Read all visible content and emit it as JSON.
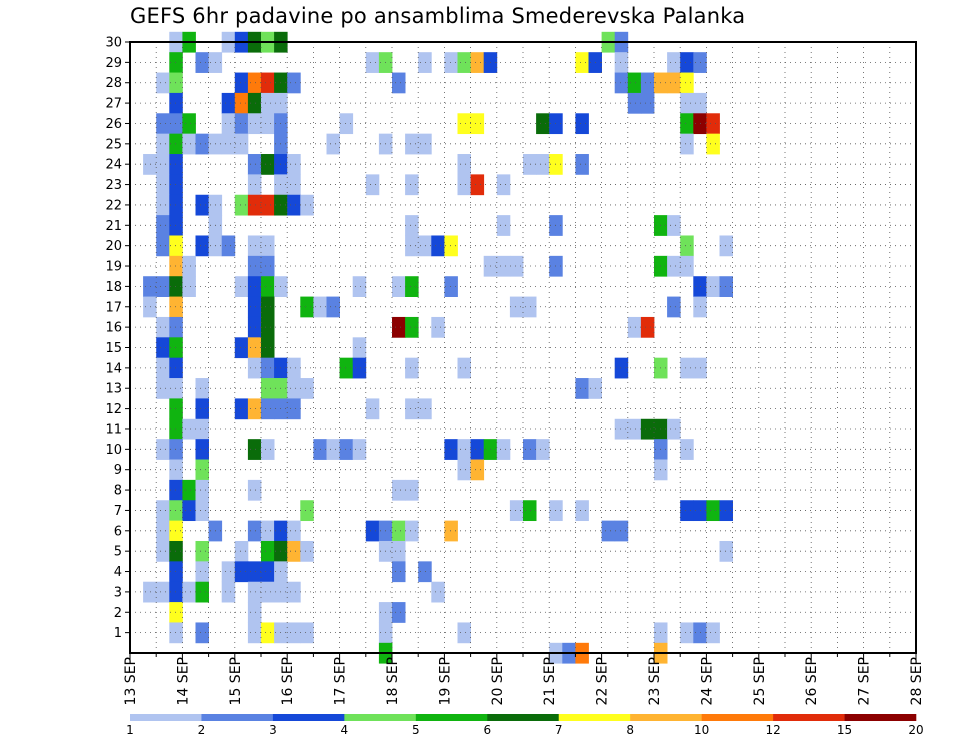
{
  "chart_data": {
    "type": "heatmap",
    "title": "GEFS 6hr padavine po ansamblima Smederevska Palanka",
    "y_axis": {
      "range": [
        0,
        30
      ],
      "ticks": [
        1,
        2,
        3,
        4,
        5,
        6,
        7,
        8,
        9,
        10,
        11,
        12,
        13,
        14,
        15,
        16,
        17,
        18,
        19,
        20,
        21,
        22,
        23,
        24,
        25,
        26,
        27,
        28,
        29,
        30
      ]
    },
    "x_axis": {
      "steps_per_day": 4,
      "date_labels": [
        "13 SEP",
        "14 SEP",
        "15 SEP",
        "16 SEP",
        "17 SEP",
        "18 SEP",
        "19 SEP",
        "20 SEP",
        "21 SEP",
        "22 SEP",
        "23 SEP",
        "24 SEP",
        "25 SEP",
        "26 SEP",
        "27 SEP",
        "28 SEP"
      ]
    },
    "grid": true,
    "colorbar": {
      "boundaries": [
        "1",
        "2",
        "3",
        "4",
        "5",
        "6",
        "7",
        "8",
        "10",
        "12",
        "15",
        "20"
      ],
      "colors": [
        "#b0c4f0",
        "#5a82e2",
        "#1548d8",
        "#6fe25a",
        "#10b410",
        "#0a6c0a",
        "#ffff1e",
        "#ffb432",
        "#ff7a0a",
        "#e12c0a",
        "#8c0000"
      ]
    },
    "cells": [
      [
        30,
        3,
        1
      ],
      [
        30,
        4,
        5
      ],
      [
        30,
        7,
        1
      ],
      [
        30,
        8,
        3
      ],
      [
        30,
        9,
        6
      ],
      [
        30,
        10,
        4
      ],
      [
        30,
        11,
        6
      ],
      [
        30,
        36,
        4
      ],
      [
        30,
        37,
        2
      ],
      [
        29,
        3,
        5
      ],
      [
        29,
        5,
        2
      ],
      [
        29,
        6,
        1
      ],
      [
        29,
        18,
        1
      ],
      [
        29,
        19,
        4
      ],
      [
        29,
        22,
        1
      ],
      [
        29,
        24,
        1
      ],
      [
        29,
        25,
        4
      ],
      [
        29,
        26,
        8
      ],
      [
        29,
        27,
        3
      ],
      [
        29,
        34,
        7
      ],
      [
        29,
        35,
        3
      ],
      [
        29,
        37,
        1
      ],
      [
        29,
        41,
        1
      ],
      [
        29,
        42,
        3
      ],
      [
        29,
        43,
        2
      ],
      [
        28,
        2,
        1
      ],
      [
        28,
        3,
        4
      ],
      [
        28,
        8,
        3
      ],
      [
        28,
        9,
        9
      ],
      [
        28,
        10,
        10
      ],
      [
        28,
        11,
        6
      ],
      [
        28,
        12,
        2
      ],
      [
        28,
        20,
        2
      ],
      [
        28,
        37,
        2
      ],
      [
        28,
        38,
        5
      ],
      [
        28,
        39,
        2
      ],
      [
        28,
        40,
        8
      ],
      [
        28,
        41,
        8
      ],
      [
        28,
        42,
        7
      ],
      [
        27,
        3,
        3
      ],
      [
        27,
        7,
        3
      ],
      [
        27,
        8,
        9
      ],
      [
        27,
        9,
        6
      ],
      [
        27,
        10,
        1
      ],
      [
        27,
        11,
        1
      ],
      [
        27,
        38,
        2
      ],
      [
        27,
        39,
        2
      ],
      [
        27,
        42,
        1
      ],
      [
        27,
        43,
        1
      ],
      [
        26,
        2,
        2
      ],
      [
        26,
        3,
        2
      ],
      [
        26,
        4,
        5
      ],
      [
        26,
        7,
        1
      ],
      [
        26,
        8,
        2
      ],
      [
        26,
        9,
        1
      ],
      [
        26,
        10,
        1
      ],
      [
        26,
        11,
        2
      ],
      [
        26,
        16,
        1
      ],
      [
        26,
        25,
        7
      ],
      [
        26,
        26,
        7
      ],
      [
        26,
        31,
        6
      ],
      [
        26,
        32,
        3
      ],
      [
        26,
        34,
        3
      ],
      [
        26,
        42,
        5
      ],
      [
        26,
        43,
        11
      ],
      [
        26,
        44,
        10
      ],
      [
        25,
        2,
        1
      ],
      [
        25,
        3,
        5
      ],
      [
        25,
        4,
        1
      ],
      [
        25,
        5,
        2
      ],
      [
        25,
        6,
        1
      ],
      [
        25,
        7,
        1
      ],
      [
        25,
        8,
        1
      ],
      [
        25,
        11,
        2
      ],
      [
        25,
        15,
        1
      ],
      [
        25,
        19,
        1
      ],
      [
        25,
        21,
        1
      ],
      [
        25,
        22,
        1
      ],
      [
        25,
        42,
        1
      ],
      [
        25,
        44,
        7
      ],
      [
        24,
        1,
        1
      ],
      [
        24,
        2,
        1
      ],
      [
        24,
        3,
        3
      ],
      [
        24,
        9,
        2
      ],
      [
        24,
        10,
        6
      ],
      [
        24,
        11,
        3
      ],
      [
        24,
        12,
        1
      ],
      [
        24,
        25,
        1
      ],
      [
        24,
        30,
        1
      ],
      [
        24,
        31,
        1
      ],
      [
        24,
        32,
        7
      ],
      [
        24,
        34,
        2
      ],
      [
        23,
        2,
        1
      ],
      [
        23,
        3,
        3
      ],
      [
        23,
        9,
        1
      ],
      [
        23,
        11,
        1
      ],
      [
        23,
        12,
        1
      ],
      [
        23,
        18,
        1
      ],
      [
        23,
        21,
        1
      ],
      [
        23,
        25,
        1
      ],
      [
        23,
        26,
        10
      ],
      [
        23,
        28,
        1
      ],
      [
        22,
        2,
        1
      ],
      [
        22,
        3,
        3
      ],
      [
        22,
        5,
        3
      ],
      [
        22,
        6,
        1
      ],
      [
        22,
        8,
        4
      ],
      [
        22,
        9,
        10
      ],
      [
        22,
        10,
        10
      ],
      [
        22,
        11,
        6
      ],
      [
        22,
        12,
        3
      ],
      [
        22,
        13,
        1
      ],
      [
        21,
        2,
        2
      ],
      [
        21,
        3,
        3
      ],
      [
        21,
        6,
        1
      ],
      [
        21,
        21,
        1
      ],
      [
        21,
        28,
        1
      ],
      [
        21,
        32,
        2
      ],
      [
        21,
        40,
        5
      ],
      [
        21,
        41,
        1
      ],
      [
        20,
        2,
        2
      ],
      [
        20,
        3,
        7
      ],
      [
        20,
        5,
        3
      ],
      [
        20,
        6,
        1
      ],
      [
        20,
        7,
        2
      ],
      [
        20,
        9,
        1
      ],
      [
        20,
        10,
        1
      ],
      [
        20,
        21,
        1
      ],
      [
        20,
        22,
        1
      ],
      [
        20,
        23,
        3
      ],
      [
        20,
        24,
        7
      ],
      [
        20,
        42,
        4
      ],
      [
        20,
        45,
        1
      ],
      [
        19,
        3,
        8
      ],
      [
        19,
        4,
        1
      ],
      [
        19,
        9,
        2
      ],
      [
        19,
        10,
        2
      ],
      [
        19,
        27,
        1
      ],
      [
        19,
        28,
        1
      ],
      [
        19,
        29,
        1
      ],
      [
        19,
        32,
        2
      ],
      [
        19,
        40,
        5
      ],
      [
        19,
        41,
        1
      ],
      [
        19,
        42,
        1
      ],
      [
        18,
        1,
        2
      ],
      [
        18,
        2,
        2
      ],
      [
        18,
        3,
        6
      ],
      [
        18,
        4,
        1
      ],
      [
        18,
        8,
        1
      ],
      [
        18,
        9,
        3
      ],
      [
        18,
        10,
        5
      ],
      [
        18,
        11,
        1
      ],
      [
        18,
        17,
        1
      ],
      [
        18,
        20,
        1
      ],
      [
        18,
        21,
        5
      ],
      [
        18,
        24,
        2
      ],
      [
        18,
        43,
        3
      ],
      [
        18,
        44,
        1
      ],
      [
        18,
        45,
        2
      ],
      [
        17,
        1,
        1
      ],
      [
        17,
        3,
        8
      ],
      [
        17,
        9,
        3
      ],
      [
        17,
        10,
        6
      ],
      [
        17,
        13,
        5
      ],
      [
        17,
        14,
        1
      ],
      [
        17,
        15,
        2
      ],
      [
        17,
        29,
        1
      ],
      [
        17,
        30,
        1
      ],
      [
        17,
        41,
        2
      ],
      [
        17,
        43,
        1
      ],
      [
        16,
        2,
        1
      ],
      [
        16,
        3,
        2
      ],
      [
        16,
        9,
        3
      ],
      [
        16,
        10,
        6
      ],
      [
        16,
        20,
        11
      ],
      [
        16,
        21,
        5
      ],
      [
        16,
        23,
        1
      ],
      [
        16,
        38,
        1
      ],
      [
        16,
        39,
        10
      ],
      [
        15,
        2,
        3
      ],
      [
        15,
        3,
        5
      ],
      [
        15,
        8,
        3
      ],
      [
        15,
        9,
        8
      ],
      [
        15,
        10,
        6
      ],
      [
        15,
        17,
        1
      ],
      [
        14,
        2,
        1
      ],
      [
        14,
        3,
        3
      ],
      [
        14,
        9,
        1
      ],
      [
        14,
        10,
        2
      ],
      [
        14,
        11,
        3
      ],
      [
        14,
        12,
        1
      ],
      [
        14,
        16,
        5
      ],
      [
        14,
        17,
        3
      ],
      [
        14,
        21,
        1
      ],
      [
        14,
        25,
        1
      ],
      [
        14,
        37,
        3
      ],
      [
        14,
        40,
        4
      ],
      [
        14,
        42,
        1
      ],
      [
        14,
        43,
        1
      ],
      [
        13,
        2,
        1
      ],
      [
        13,
        3,
        1
      ],
      [
        13,
        5,
        1
      ],
      [
        13,
        10,
        4
      ],
      [
        13,
        11,
        4
      ],
      [
        13,
        12,
        1
      ],
      [
        13,
        13,
        1
      ],
      [
        13,
        34,
        2
      ],
      [
        13,
        35,
        1
      ],
      [
        12,
        3,
        5
      ],
      [
        12,
        5,
        3
      ],
      [
        12,
        8,
        3
      ],
      [
        12,
        9,
        8
      ],
      [
        12,
        10,
        2
      ],
      [
        12,
        11,
        2
      ],
      [
        12,
        12,
        2
      ],
      [
        12,
        18,
        1
      ],
      [
        12,
        21,
        1
      ],
      [
        12,
        22,
        1
      ],
      [
        11,
        3,
        5
      ],
      [
        11,
        4,
        1
      ],
      [
        11,
        5,
        1
      ],
      [
        11,
        37,
        1
      ],
      [
        11,
        38,
        1
      ],
      [
        11,
        39,
        6
      ],
      [
        11,
        40,
        6
      ],
      [
        11,
        41,
        1
      ],
      [
        10,
        2,
        1
      ],
      [
        10,
        3,
        2
      ],
      [
        10,
        5,
        3
      ],
      [
        10,
        9,
        6
      ],
      [
        10,
        10,
        1
      ],
      [
        10,
        14,
        2
      ],
      [
        10,
        15,
        1
      ],
      [
        10,
        16,
        2
      ],
      [
        10,
        17,
        1
      ],
      [
        10,
        24,
        3
      ],
      [
        10,
        25,
        1
      ],
      [
        10,
        26,
        3
      ],
      [
        10,
        27,
        5
      ],
      [
        10,
        28,
        1
      ],
      [
        10,
        30,
        2
      ],
      [
        10,
        31,
        1
      ],
      [
        10,
        40,
        2
      ],
      [
        10,
        42,
        1
      ],
      [
        9,
        3,
        1
      ],
      [
        9,
        5,
        4
      ],
      [
        9,
        25,
        1
      ],
      [
        9,
        26,
        8
      ],
      [
        9,
        40,
        1
      ],
      [
        8,
        3,
        3
      ],
      [
        8,
        4,
        5
      ],
      [
        8,
        5,
        1
      ],
      [
        8,
        9,
        1
      ],
      [
        8,
        20,
        1
      ],
      [
        8,
        21,
        1
      ],
      [
        7,
        2,
        1
      ],
      [
        7,
        3,
        4
      ],
      [
        7,
        4,
        3
      ],
      [
        7,
        5,
        1
      ],
      [
        7,
        13,
        4
      ],
      [
        7,
        29,
        1
      ],
      [
        7,
        30,
        5
      ],
      [
        7,
        32,
        1
      ],
      [
        7,
        34,
        1
      ],
      [
        7,
        42,
        3
      ],
      [
        7,
        43,
        3
      ],
      [
        7,
        44,
        5
      ],
      [
        7,
        45,
        3
      ],
      [
        6,
        2,
        1
      ],
      [
        6,
        3,
        7
      ],
      [
        6,
        6,
        2
      ],
      [
        6,
        9,
        2
      ],
      [
        6,
        10,
        1
      ],
      [
        6,
        11,
        3
      ],
      [
        6,
        12,
        1
      ],
      [
        6,
        18,
        3
      ],
      [
        6,
        19,
        2
      ],
      [
        6,
        20,
        4
      ],
      [
        6,
        21,
        1
      ],
      [
        6,
        24,
        8
      ],
      [
        6,
        36,
        2
      ],
      [
        6,
        37,
        2
      ],
      [
        5,
        2,
        1
      ],
      [
        5,
        3,
        6
      ],
      [
        5,
        5,
        4
      ],
      [
        5,
        8,
        1
      ],
      [
        5,
        10,
        5
      ],
      [
        5,
        11,
        6
      ],
      [
        5,
        12,
        8
      ],
      [
        5,
        13,
        1
      ],
      [
        5,
        19,
        1
      ],
      [
        5,
        20,
        1
      ],
      [
        5,
        45,
        1
      ],
      [
        4,
        3,
        3
      ],
      [
        4,
        5,
        1
      ],
      [
        4,
        7,
        1
      ],
      [
        4,
        8,
        3
      ],
      [
        4,
        9,
        3
      ],
      [
        4,
        10,
        3
      ],
      [
        4,
        11,
        1
      ],
      [
        4,
        20,
        2
      ],
      [
        4,
        22,
        2
      ],
      [
        3,
        1,
        1
      ],
      [
        3,
        2,
        1
      ],
      [
        3,
        3,
        3
      ],
      [
        3,
        4,
        1
      ],
      [
        3,
        5,
        5
      ],
      [
        3,
        7,
        1
      ],
      [
        3,
        9,
        1
      ],
      [
        3,
        10,
        1
      ],
      [
        3,
        11,
        1
      ],
      [
        3,
        12,
        1
      ],
      [
        3,
        23,
        1
      ],
      [
        2,
        3,
        7
      ],
      [
        2,
        9,
        1
      ],
      [
        2,
        19,
        1
      ],
      [
        2,
        20,
        2
      ],
      [
        1,
        3,
        1
      ],
      [
        1,
        5,
        2
      ],
      [
        1,
        9,
        1
      ],
      [
        1,
        10,
        7
      ],
      [
        1,
        11,
        1
      ],
      [
        1,
        12,
        1
      ],
      [
        1,
        13,
        1
      ],
      [
        1,
        19,
        1
      ],
      [
        1,
        25,
        1
      ],
      [
        1,
        40,
        1
      ],
      [
        1,
        42,
        1
      ],
      [
        1,
        43,
        2
      ],
      [
        1,
        44,
        1
      ],
      [
        0,
        19,
        5
      ],
      [
        0,
        32,
        1
      ],
      [
        0,
        33,
        2
      ],
      [
        0,
        34,
        9
      ],
      [
        0,
        40,
        8
      ]
    ]
  }
}
